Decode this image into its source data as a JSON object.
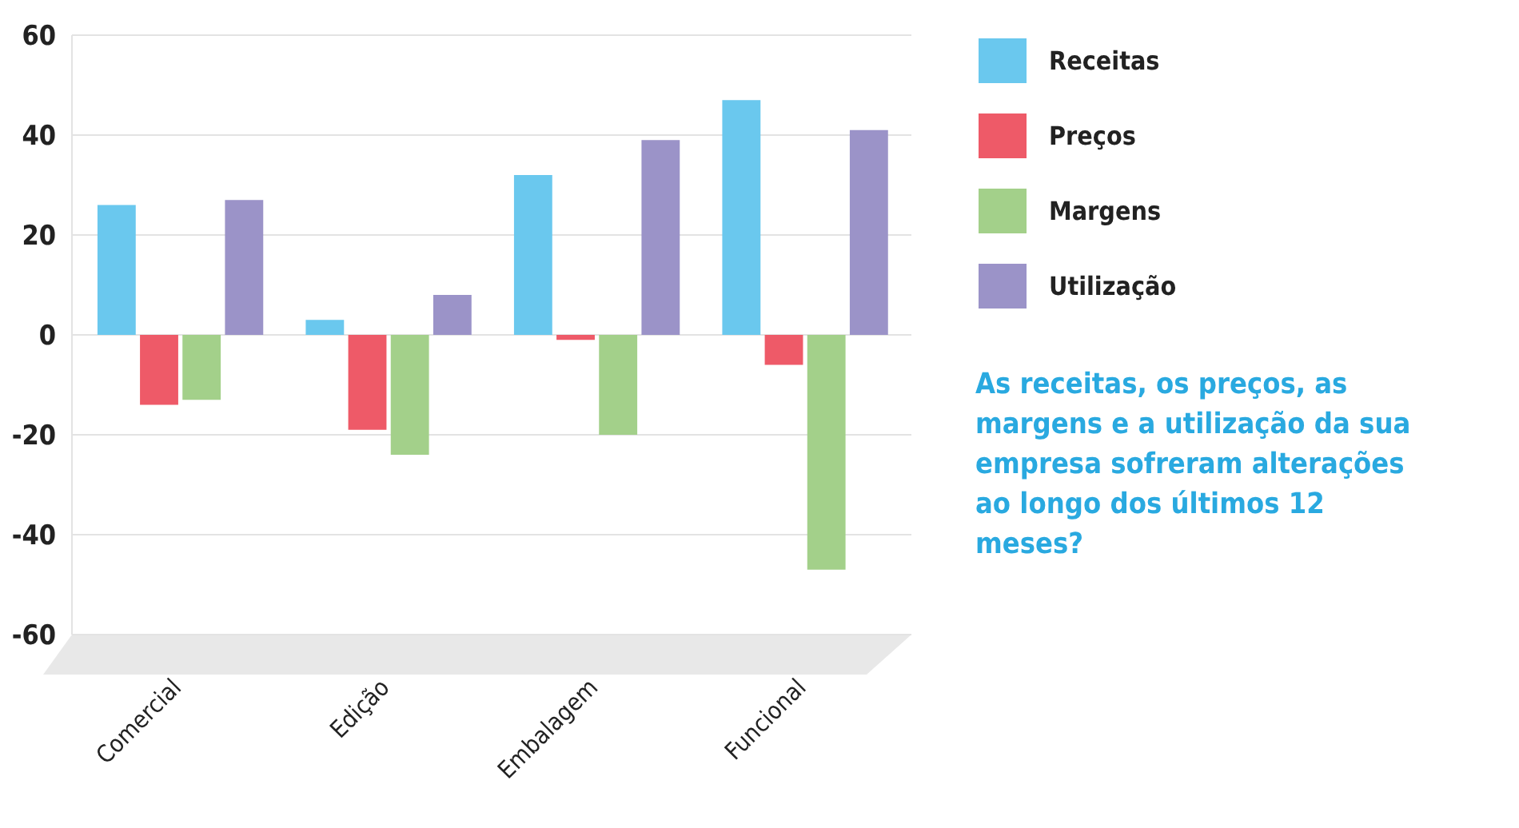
{
  "chart_data": {
    "type": "bar",
    "categories": [
      "Comercial",
      "Edição",
      "Embalagem",
      "Funcional"
    ],
    "series": [
      {
        "name": "Receitas",
        "color": "#6ac8ee",
        "values": [
          26,
          3,
          32,
          47
        ]
      },
      {
        "name": "Preços",
        "color": "#ee5a68",
        "values": [
          -14,
          -19,
          -1,
          -6
        ]
      },
      {
        "name": "Margens",
        "color": "#a3d08a",
        "values": [
          -13,
          -24,
          -20,
          -47
        ]
      },
      {
        "name": "Utilização",
        "color": "#9b93c8",
        "values": [
          27,
          8,
          39,
          41
        ]
      }
    ],
    "ylim": [
      -60,
      60
    ],
    "yticks": [
      -60,
      -40,
      -20,
      0,
      20,
      40,
      60
    ],
    "grid": "y",
    "legend": "right",
    "annotations": [
      "As receitas, os preços, as margens e a utilização da sua empresa sofreram alterações ao longo dos últimos 12 meses?"
    ]
  }
}
